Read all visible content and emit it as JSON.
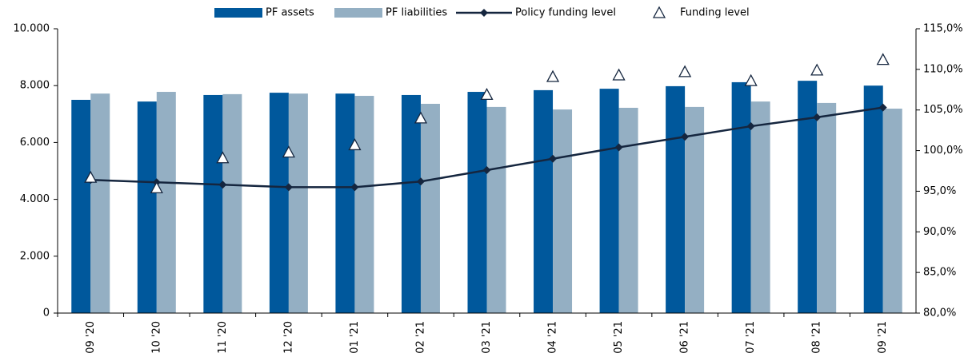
{
  "chart_data": {
    "type": "bar",
    "categories": [
      "09 '20",
      "10 '20",
      "11 '20",
      "12 '20",
      "01 '21",
      "02 '21",
      "03 '21",
      "04 '21",
      "05 '21",
      "06 '21",
      "07 '21",
      "08 '21",
      "09 '21"
    ],
    "series": [
      {
        "name": "PF assets",
        "color": "#00589c",
        "type": "bar",
        "values": [
          7500,
          7440,
          7670,
          7750,
          7720,
          7670,
          7780,
          7840,
          7890,
          7980,
          8120,
          8170,
          8000
        ]
      },
      {
        "name": "PF liabilities",
        "color": "#94afc3",
        "type": "bar",
        "values": [
          7720,
          7780,
          7700,
          7720,
          7640,
          7360,
          7250,
          7160,
          7220,
          7250,
          7440,
          7390,
          7190
        ]
      },
      {
        "name": "Policy funding level",
        "color": "#15263f",
        "type": "line",
        "axis": "y2",
        "values": [
          96.4,
          96.1,
          95.8,
          95.5,
          95.5,
          96.2,
          97.6,
          99.0,
          100.4,
          101.7,
          103.0,
          104.1,
          105.3
        ]
      },
      {
        "name": "Funding level",
        "color": "#15263f",
        "type": "scatter",
        "axis": "y2",
        "values": [
          96.7,
          95.4,
          99.1,
          99.8,
          100.7,
          104.0,
          106.9,
          109.1,
          109.3,
          109.7,
          108.6,
          109.9,
          111.2
        ]
      }
    ],
    "ylim": [
      0,
      10000
    ],
    "yticks": [
      {
        "value": 0,
        "label": "0"
      },
      {
        "value": 2000,
        "label": "2.000"
      },
      {
        "value": 4000,
        "label": "4.000"
      },
      {
        "value": 6000,
        "label": "6.000"
      },
      {
        "value": 8000,
        "label": "8.000"
      },
      {
        "value": 10000,
        "label": "10.000"
      }
    ],
    "y2lim": [
      80,
      115
    ],
    "y2ticks": [
      {
        "value": 80,
        "label": "80,0%"
      },
      {
        "value": 85,
        "label": "85,0%"
      },
      {
        "value": 90,
        "label": "90,0%"
      },
      {
        "value": 95,
        "label": "95,0%"
      },
      {
        "value": 100,
        "label": "100,0%"
      },
      {
        "value": 105,
        "label": "105,0%"
      },
      {
        "value": 110,
        "label": "110,0%"
      },
      {
        "value": 115,
        "label": "115,0%"
      }
    ],
    "legend": "top"
  }
}
